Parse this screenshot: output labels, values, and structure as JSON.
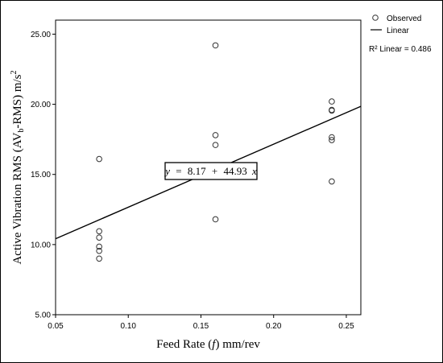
{
  "chart_data": {
    "type": "scatter",
    "xlabel_prefix": "Feed Rate (",
    "xlabel_var": "f",
    "xlabel_suffix": ") mm/rev",
    "ylabel_main": "Active Vibration RMS (AV",
    "ylabel_sub": "b",
    "ylabel_mid": "-RMS) m/s",
    "ylabel_sup": "2",
    "xlim": [
      0.05,
      0.26
    ],
    "ylim": [
      5.0,
      26.0
    ],
    "x_ticks": [
      0.05,
      0.1,
      0.15,
      0.2,
      0.25
    ],
    "x_tick_labels": [
      "0.05",
      "0.10",
      "0.15",
      "0.20",
      "0.25"
    ],
    "y_ticks": [
      5,
      10,
      15,
      20,
      25
    ],
    "y_tick_labels": [
      "5.00",
      "10.00",
      "15.00",
      "20.00",
      "25.00"
    ],
    "points": [
      {
        "x": 0.08,
        "y": 16.1
      },
      {
        "x": 0.08,
        "y": 10.95
      },
      {
        "x": 0.08,
        "y": 10.5
      },
      {
        "x": 0.08,
        "y": 9.85
      },
      {
        "x": 0.08,
        "y": 9.55
      },
      {
        "x": 0.08,
        "y": 9.0
      },
      {
        "x": 0.16,
        "y": 24.2
      },
      {
        "x": 0.16,
        "y": 17.8
      },
      {
        "x": 0.16,
        "y": 17.1
      },
      {
        "x": 0.16,
        "y": 15.65
      },
      {
        "x": 0.16,
        "y": 11.8
      },
      {
        "x": 0.24,
        "y": 20.2
      },
      {
        "x": 0.24,
        "y": 19.6
      },
      {
        "x": 0.24,
        "y": 19.55
      },
      {
        "x": 0.24,
        "y": 17.65
      },
      {
        "x": 0.24,
        "y": 17.45
      },
      {
        "x": 0.24,
        "y": 14.5
      }
    ],
    "fit": {
      "intercept": 8.17,
      "slope": 44.93
    },
    "equation": {
      "y": "y",
      "eq": "=",
      "intercept": "8.17",
      "plus": "+",
      "slope": "44.93",
      "x": "x"
    },
    "legend": {
      "observed": "Observed",
      "linear": "Linear",
      "r2_label": "R² Linear = 0.486"
    },
    "grid": false,
    "legend_position": "top-right"
  }
}
